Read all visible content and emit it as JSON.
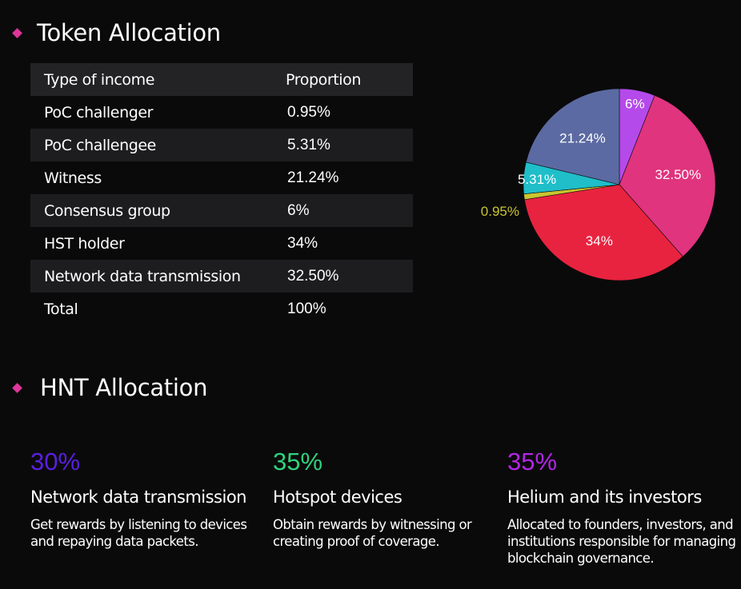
{
  "token_section": {
    "title": "Token Allocation"
  },
  "table": {
    "headers": [
      "Type of income",
      "Proportion"
    ],
    "rows": [
      [
        "PoC challenger",
        "0.95%"
      ],
      [
        "PoC challengee",
        "5.31%"
      ],
      [
        "Witness",
        "21.24%"
      ],
      [
        "Consensus group",
        "6%"
      ],
      [
        "HST holder",
        "34%"
      ],
      [
        "Network data transmission",
        "32.50%"
      ],
      [
        "Total",
        "100%"
      ]
    ]
  },
  "chart_data": {
    "type": "pie",
    "slices": [
      {
        "label": "6%",
        "value": 6,
        "color": "#b54aea"
      },
      {
        "label": "32.50%",
        "value": 32.5,
        "color": "#e0347e"
      },
      {
        "label": "34%",
        "value": 34,
        "color": "#e8233f"
      },
      {
        "label": "0.95%",
        "value": 0.95,
        "color": "#c9c530"
      },
      {
        "label": "5.31%",
        "value": 5.31,
        "color": "#1fbec9"
      },
      {
        "label": "21.24%",
        "value": 21.24,
        "color": "#5b6aa2"
      }
    ]
  },
  "hnt_section": {
    "title": "HNT Allocation",
    "columns": [
      {
        "percent": "30%",
        "color": "#5a1fe0",
        "heading": "Network data transmission",
        "description": "Get rewards by listening to devices and repaying data packets."
      },
      {
        "percent": "35%",
        "color": "#2fd27c",
        "heading": "Hotspot devices",
        "description": "Obtain rewards by witnessing or creating proof of coverage."
      },
      {
        "percent": "35%",
        "color": "#b226e6",
        "heading": "Helium and its investors",
        "description": "Allocated to founders, investors, and institutions responsible for managing blockchain governance."
      }
    ]
  }
}
